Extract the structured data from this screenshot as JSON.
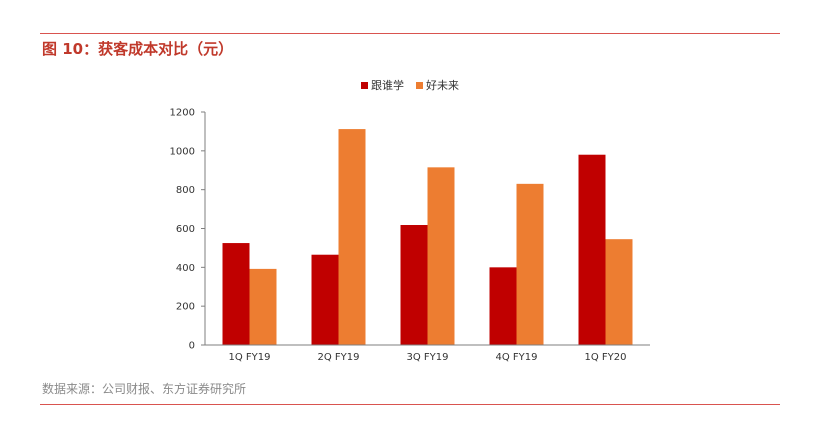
{
  "figure": {
    "title": "图 10：获客成本对比（元）",
    "source": "数据来源：公司财报、东方证券研究所"
  },
  "chart_data": {
    "type": "bar",
    "categories": [
      "1Q FY19",
      "2Q FY19",
      "3Q FY19",
      "4Q FY19",
      "1Q FY20"
    ],
    "series": [
      {
        "name": "跟谁学",
        "color": "#c00000",
        "values": [
          525,
          465,
          618,
          400,
          980
        ]
      },
      {
        "name": "好未来",
        "color": "#ed7d31",
        "values": [
          392,
          1112,
          915,
          830,
          545
        ]
      }
    ],
    "yticks": [
      0,
      200,
      400,
      600,
      800,
      1000,
      1200
    ],
    "ylim": [
      0,
      1200
    ],
    "grid": false,
    "legend_position": "top-center"
  }
}
